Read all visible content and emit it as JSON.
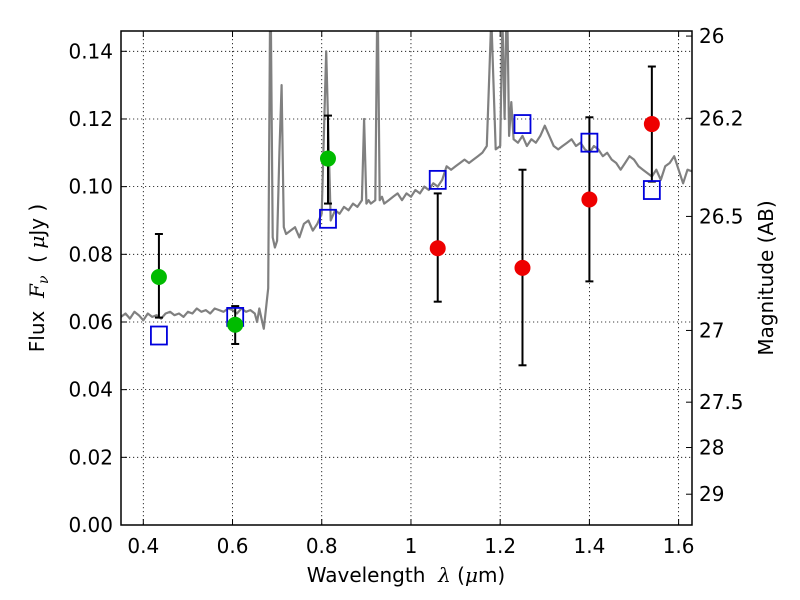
{
  "chart_data": {
    "type": "scatter",
    "title": "",
    "xlabel_parts": [
      "Wavelength  ",
      "λ",
      " (",
      "μ",
      "m)"
    ],
    "ylabel_parts": [
      "Flux  ",
      "F",
      "ν",
      "  ( ",
      "μ",
      "Jy )"
    ],
    "ylabel_right": "Magnitude (AB)",
    "xlim": [
      0.35,
      1.63
    ],
    "ylim": [
      0.0,
      0.146
    ],
    "grid": true,
    "legend": "none",
    "x_ticks": [
      0.4,
      0.6,
      0.8,
      1.0,
      1.2,
      1.4,
      1.6
    ],
    "x_tick_labels": [
      "0.4",
      "0.6",
      "0.8",
      "1",
      "1.2",
      "1.4",
      "1.6"
    ],
    "y_ticks": [
      0.0,
      0.02,
      0.04,
      0.06,
      0.08,
      0.1,
      0.12,
      0.14
    ],
    "y_tick_labels": [
      "0.00",
      "0.02",
      "0.04",
      "0.06",
      "0.08",
      "0.10",
      "0.12",
      "0.14"
    ],
    "right_ticks": [
      {
        "label": "26",
        "flux": 0.1445
      },
      {
        "label": "26.2",
        "flux": 0.1202
      },
      {
        "label": "26.5",
        "flux": 0.0912
      },
      {
        "label": "27",
        "flux": 0.0575
      },
      {
        "label": "27.5",
        "flux": 0.0363
      },
      {
        "label": "28",
        "flux": 0.0229
      },
      {
        "label": "29",
        "flux": 0.0091
      }
    ],
    "colors": {
      "spectrum": "#808080",
      "green": "#00bb00",
      "red": "#ee0000",
      "model": "#0000dd",
      "errorbar": "#000000"
    },
    "series": [
      {
        "kind": "green-points",
        "points": [
          {
            "x": 0.435,
            "y": 0.0733,
            "ylo": 0.0613,
            "yhi": 0.086
          },
          {
            "x": 0.606,
            "y": 0.0592,
            "ylo": 0.0535,
            "yhi": 0.0647
          },
          {
            "x": 0.814,
            "y": 0.1083,
            "ylo": 0.095,
            "yhi": 0.121
          }
        ]
      },
      {
        "kind": "red-points",
        "points": [
          {
            "x": 1.06,
            "y": 0.0818,
            "ylo": 0.066,
            "yhi": 0.098
          },
          {
            "x": 1.25,
            "y": 0.076,
            "ylo": 0.0472,
            "yhi": 0.105
          },
          {
            "x": 1.4,
            "y": 0.0962,
            "ylo": 0.072,
            "yhi": 0.1205
          },
          {
            "x": 1.54,
            "y": 0.1185,
            "ylo": 0.1015,
            "yhi": 0.1355
          }
        ]
      },
      {
        "kind": "model-squares",
        "points": [
          {
            "x": 0.435,
            "y": 0.056
          },
          {
            "x": 0.606,
            "y": 0.0615
          },
          {
            "x": 0.814,
            "y": 0.0905
          },
          {
            "x": 1.06,
            "y": 0.102
          },
          {
            "x": 1.25,
            "y": 0.1185
          },
          {
            "x": 1.4,
            "y": 0.113
          },
          {
            "x": 1.54,
            "y": 0.099
          }
        ]
      },
      {
        "kind": "spectrum",
        "x": [
          0.35,
          0.36,
          0.37,
          0.38,
          0.39,
          0.4,
          0.41,
          0.42,
          0.43,
          0.44,
          0.45,
          0.46,
          0.47,
          0.48,
          0.49,
          0.5,
          0.51,
          0.52,
          0.53,
          0.54,
          0.55,
          0.56,
          0.57,
          0.58,
          0.59,
          0.6,
          0.61,
          0.62,
          0.63,
          0.64,
          0.65,
          0.655,
          0.66,
          0.665,
          0.67,
          0.675,
          0.68,
          0.685,
          0.69,
          0.695,
          0.7,
          0.705,
          0.71,
          0.715,
          0.72,
          0.73,
          0.74,
          0.75,
          0.76,
          0.77,
          0.78,
          0.79,
          0.8,
          0.81,
          0.82,
          0.83,
          0.84,
          0.85,
          0.86,
          0.87,
          0.88,
          0.89,
          0.895,
          0.9,
          0.905,
          0.91,
          0.92,
          0.925,
          0.93,
          0.935,
          0.94,
          0.95,
          0.96,
          0.97,
          0.98,
          0.99,
          1.0,
          1.01,
          1.02,
          1.03,
          1.04,
          1.05,
          1.06,
          1.07,
          1.08,
          1.09,
          1.1,
          1.11,
          1.12,
          1.13,
          1.14,
          1.15,
          1.16,
          1.17,
          1.18,
          1.19,
          1.2,
          1.205,
          1.21,
          1.215,
          1.22,
          1.225,
          1.23,
          1.24,
          1.25,
          1.26,
          1.27,
          1.28,
          1.29,
          1.3,
          1.31,
          1.32,
          1.33,
          1.34,
          1.35,
          1.36,
          1.37,
          1.38,
          1.39,
          1.4,
          1.41,
          1.42,
          1.43,
          1.44,
          1.45,
          1.46,
          1.47,
          1.48,
          1.49,
          1.5,
          1.51,
          1.52,
          1.53,
          1.54,
          1.55,
          1.56,
          1.57,
          1.58,
          1.59,
          1.6,
          1.61,
          1.62,
          1.63
        ],
        "y": [
          0.0615,
          0.0625,
          0.061,
          0.063,
          0.062,
          0.0605,
          0.0625,
          0.0615,
          0.062,
          0.061,
          0.0625,
          0.063,
          0.062,
          0.0625,
          0.0615,
          0.063,
          0.0625,
          0.064,
          0.063,
          0.0635,
          0.0625,
          0.064,
          0.0635,
          0.063,
          0.064,
          0.0635,
          0.0625,
          0.064,
          0.063,
          0.0635,
          0.0625,
          0.06,
          0.064,
          0.061,
          0.058,
          0.064,
          0.07,
          0.165,
          0.085,
          0.082,
          0.084,
          0.11,
          0.13,
          0.088,
          0.086,
          0.087,
          0.088,
          0.085,
          0.089,
          0.09,
          0.087,
          0.089,
          0.092,
          0.14,
          0.09,
          0.093,
          0.092,
          0.094,
          0.093,
          0.095,
          0.094,
          0.096,
          0.12,
          0.095,
          0.096,
          0.095,
          0.096,
          0.16,
          0.096,
          0.097,
          0.095,
          0.096,
          0.097,
          0.098,
          0.096,
          0.098,
          0.097,
          0.099,
          0.098,
          0.1,
          0.099,
          0.101,
          0.1,
          0.102,
          0.106,
          0.105,
          0.106,
          0.107,
          0.108,
          0.107,
          0.108,
          0.109,
          0.11,
          0.112,
          0.15,
          0.111,
          0.112,
          0.15,
          0.12,
          0.16,
          0.115,
          0.125,
          0.114,
          0.113,
          0.115,
          0.112,
          0.114,
          0.113,
          0.115,
          0.118,
          0.115,
          0.112,
          0.111,
          0.112,
          0.113,
          0.114,
          0.112,
          0.113,
          0.111,
          0.11,
          0.112,
          0.111,
          0.109,
          0.11,
          0.108,
          0.107,
          0.105,
          0.107,
          0.109,
          0.108,
          0.106,
          0.105,
          0.104,
          0.103,
          0.105,
          0.102,
          0.106,
          0.107,
          0.109,
          0.105,
          0.101,
          0.105,
          0.1045
        ]
      }
    ]
  }
}
